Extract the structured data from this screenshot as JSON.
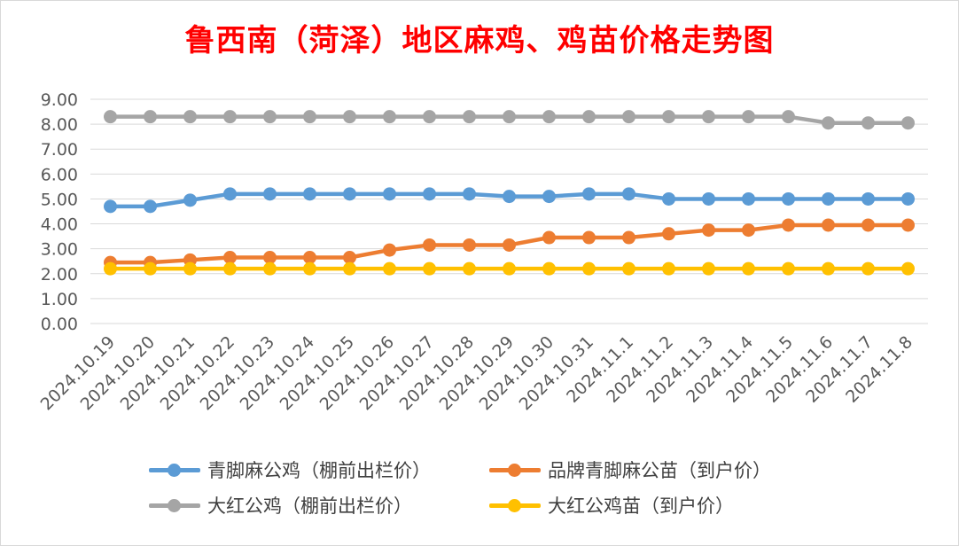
{
  "chart_data": {
    "type": "line",
    "title": "鲁西南（菏泽）地区麻鸡、鸡苗价格走势图",
    "xlabel": "",
    "ylabel": "",
    "ylim": [
      0,
      9
    ],
    "yticks": [
      "0.00",
      "1.00",
      "2.00",
      "3.00",
      "4.00",
      "5.00",
      "6.00",
      "7.00",
      "8.00",
      "9.00"
    ],
    "grid": "horizontal",
    "legend_position": "bottom",
    "categories": [
      "2024.10.19",
      "2024.10.20",
      "2024.10.21",
      "2024.10.22",
      "2024.10.23",
      "2024.10.24",
      "2024.10.25",
      "2024.10.26",
      "2024.10.27",
      "2024.10.28",
      "2024.10.29",
      "2024.10.30",
      "2024.10.31",
      "2024.11.1",
      "2024.11.2",
      "2024.11.3",
      "2024.11.4",
      "2024.11.5",
      "2024.11.6",
      "2024.11.7",
      "2024.11.8"
    ],
    "series": [
      {
        "name": "青脚麻公鸡（棚前出栏价）",
        "color": "#5b9bd5",
        "values": [
          4.7,
          4.7,
          4.95,
          5.2,
          5.2,
          5.2,
          5.2,
          5.2,
          5.2,
          5.2,
          5.1,
          5.1,
          5.2,
          5.2,
          5.0,
          5.0,
          5.0,
          5.0,
          5.0,
          5.0,
          5.0
        ]
      },
      {
        "name": "品牌青脚麻公苗（到户价）",
        "color": "#ed7d31",
        "values": [
          2.45,
          2.45,
          2.55,
          2.65,
          2.65,
          2.65,
          2.65,
          2.95,
          3.15,
          3.15,
          3.15,
          3.45,
          3.45,
          3.45,
          3.6,
          3.75,
          3.75,
          3.95,
          3.95,
          3.95,
          3.95
        ]
      },
      {
        "name": "大红公鸡（棚前出栏价）",
        "color": "#a5a5a5",
        "values": [
          8.3,
          8.3,
          8.3,
          8.3,
          8.3,
          8.3,
          8.3,
          8.3,
          8.3,
          8.3,
          8.3,
          8.3,
          8.3,
          8.3,
          8.3,
          8.3,
          8.3,
          8.3,
          8.05,
          8.05,
          8.05
        ]
      },
      {
        "name": "大红公鸡苗（到户价）",
        "color": "#ffc000",
        "values": [
          2.2,
          2.2,
          2.2,
          2.2,
          2.2,
          2.2,
          2.2,
          2.2,
          2.2,
          2.2,
          2.2,
          2.2,
          2.2,
          2.2,
          2.2,
          2.2,
          2.2,
          2.2,
          2.2,
          2.2,
          2.2
        ]
      }
    ]
  }
}
